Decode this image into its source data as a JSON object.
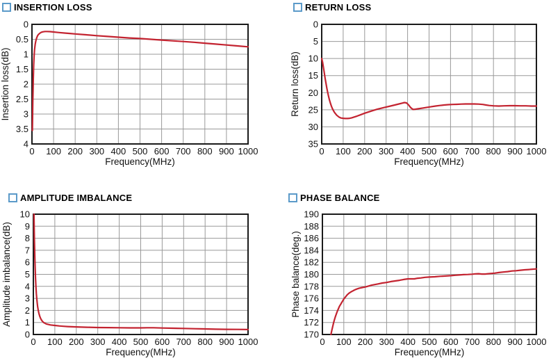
{
  "colors": {
    "curve": "#c32330",
    "grid": "#999999",
    "axis": "#1a1a1a",
    "text": "#111111",
    "title_square": "#5b9ac9",
    "title_text": "#000000",
    "background": "#ffffff"
  },
  "chart_data": [
    {
      "type": "line",
      "title": "INSERTION LOSS",
      "xlabel": "Frequency(MHz)",
      "ylabel": "Insertion loss(dB)",
      "xlim": [
        0,
        1000
      ],
      "xticks": [
        0,
        100,
        200,
        300,
        400,
        500,
        600,
        700,
        800,
        900,
        1000
      ],
      "ylim": [
        0,
        4
      ],
      "yticks": [
        0,
        0.5,
        1,
        1.5,
        2,
        2.5,
        3,
        3.5,
        4
      ],
      "y_inverted": true,
      "grid": true,
      "legend": "none",
      "series": [
        {
          "name": "insertion-loss",
          "points": [
            [
              2,
              3.55
            ],
            [
              3,
              3.1
            ],
            [
              4,
              2.6
            ],
            [
              5,
              2.2
            ],
            [
              6,
              1.85
            ],
            [
              8,
              1.35
            ],
            [
              10,
              1.05
            ],
            [
              12,
              0.85
            ],
            [
              15,
              0.66
            ],
            [
              18,
              0.55
            ],
            [
              22,
              0.45
            ],
            [
              26,
              0.38
            ],
            [
              30,
              0.34
            ],
            [
              36,
              0.3
            ],
            [
              42,
              0.27
            ],
            [
              50,
              0.25
            ],
            [
              60,
              0.24
            ],
            [
              70,
              0.24
            ],
            [
              85,
              0.245
            ],
            [
              100,
              0.255
            ],
            [
              125,
              0.275
            ],
            [
              150,
              0.29
            ],
            [
              175,
              0.305
            ],
            [
              200,
              0.32
            ],
            [
              250,
              0.35
            ],
            [
              300,
              0.38
            ],
            [
              350,
              0.405
            ],
            [
              400,
              0.43
            ],
            [
              450,
              0.455
            ],
            [
              500,
              0.475
            ],
            [
              550,
              0.5
            ],
            [
              600,
              0.525
            ],
            [
              650,
              0.55
            ],
            [
              700,
              0.575
            ],
            [
              750,
              0.6
            ],
            [
              800,
              0.63
            ],
            [
              850,
              0.66
            ],
            [
              900,
              0.69
            ],
            [
              950,
              0.72
            ],
            [
              1000,
              0.75
            ]
          ]
        }
      ]
    },
    {
      "type": "line",
      "title": "RETURN LOSS",
      "xlabel": "Frequency(MHz)",
      "ylabel": "Return loss(dB)",
      "xlim": [
        0,
        1000
      ],
      "xticks": [
        0,
        100,
        200,
        300,
        400,
        500,
        600,
        700,
        800,
        900,
        1000
      ],
      "ylim": [
        0,
        35
      ],
      "yticks": [
        0,
        5,
        10,
        15,
        20,
        25,
        30,
        35
      ],
      "y_inverted": true,
      "grid": true,
      "legend": "none",
      "series": [
        {
          "name": "return-loss",
          "points": [
            [
              0,
              10
            ],
            [
              4,
              11
            ],
            [
              8,
              12.6
            ],
            [
              12,
              14.2
            ],
            [
              16,
              15.8
            ],
            [
              20,
              17.3
            ],
            [
              24,
              18.7
            ],
            [
              28,
              20
            ],
            [
              32,
              21.1
            ],
            [
              36,
              22.1
            ],
            [
              40,
              23
            ],
            [
              45,
              23.9
            ],
            [
              50,
              24.7
            ],
            [
              55,
              25.3
            ],
            [
              60,
              25.8
            ],
            [
              70,
              26.6
            ],
            [
              80,
              27.1
            ],
            [
              90,
              27.4
            ],
            [
              100,
              27.5
            ],
            [
              110,
              27.55
            ],
            [
              120,
              27.55
            ],
            [
              130,
              27.5
            ],
            [
              140,
              27.35
            ],
            [
              150,
              27.15
            ],
            [
              165,
              26.85
            ],
            [
              180,
              26.5
            ],
            [
              200,
              26
            ],
            [
              220,
              25.6
            ],
            [
              240,
              25.2
            ],
            [
              260,
              24.8
            ],
            [
              280,
              24.5
            ],
            [
              300,
              24.2
            ],
            [
              320,
              23.9
            ],
            [
              340,
              23.6
            ],
            [
              360,
              23.3
            ],
            [
              375,
              23.05
            ],
            [
              385,
              22.9
            ],
            [
              395,
              23
            ],
            [
              405,
              23.6
            ],
            [
              415,
              24.4
            ],
            [
              425,
              24.9
            ],
            [
              435,
              24.85
            ],
            [
              450,
              24.7
            ],
            [
              470,
              24.5
            ],
            [
              490,
              24.3
            ],
            [
              510,
              24.1
            ],
            [
              530,
              23.9
            ],
            [
              550,
              23.75
            ],
            [
              570,
              23.6
            ],
            [
              590,
              23.5
            ],
            [
              610,
              23.45
            ],
            [
              630,
              23.4
            ],
            [
              650,
              23.35
            ],
            [
              670,
              23.3
            ],
            [
              690,
              23.3
            ],
            [
              710,
              23.3
            ],
            [
              730,
              23.35
            ],
            [
              750,
              23.45
            ],
            [
              765,
              23.6
            ],
            [
              780,
              23.75
            ],
            [
              800,
              23.85
            ],
            [
              825,
              23.9
            ],
            [
              850,
              23.85
            ],
            [
              875,
              23.8
            ],
            [
              900,
              23.8
            ],
            [
              925,
              23.85
            ],
            [
              950,
              23.85
            ],
            [
              975,
              23.9
            ],
            [
              1000,
              23.9
            ]
          ]
        }
      ]
    },
    {
      "type": "line",
      "title": "AMPLITUDE IMBALANCE",
      "xlabel": "Frequency(MHz)",
      "ylabel": "Amplitude imbalance(dB)",
      "xlim": [
        0,
        1000
      ],
      "xticks": [
        0,
        100,
        200,
        300,
        400,
        500,
        600,
        700,
        800,
        900,
        1000
      ],
      "ylim": [
        0,
        10
      ],
      "yticks": [
        0,
        1,
        2,
        3,
        4,
        5,
        6,
        7,
        8,
        9,
        10
      ],
      "y_inverted": false,
      "grid": true,
      "legend": "none",
      "series": [
        {
          "name": "amplitude-imbalance",
          "points": [
            [
              3,
              10
            ],
            [
              4,
              8.9
            ],
            [
              5,
              7.9
            ],
            [
              6,
              7
            ],
            [
              7,
              6.3
            ],
            [
              8,
              5.7
            ],
            [
              10,
              4.7
            ],
            [
              12,
              4
            ],
            [
              14,
              3.4
            ],
            [
              16,
              3
            ],
            [
              18,
              2.6
            ],
            [
              20,
              2.3
            ],
            [
              23,
              2
            ],
            [
              26,
              1.75
            ],
            [
              30,
              1.5
            ],
            [
              34,
              1.33
            ],
            [
              38,
              1.2
            ],
            [
              42,
              1.1
            ],
            [
              46,
              1.03
            ],
            [
              50,
              0.97
            ],
            [
              60,
              0.88
            ],
            [
              70,
              0.83
            ],
            [
              80,
              0.79
            ],
            [
              100,
              0.75
            ],
            [
              120,
              0.71
            ],
            [
              140,
              0.68
            ],
            [
              160,
              0.66
            ],
            [
              180,
              0.64
            ],
            [
              200,
              0.63
            ],
            [
              250,
              0.6
            ],
            [
              300,
              0.58
            ],
            [
              350,
              0.57
            ],
            [
              400,
              0.56
            ],
            [
              450,
              0.55
            ],
            [
              500,
              0.55
            ],
            [
              530,
              0.56
            ],
            [
              560,
              0.56
            ],
            [
              600,
              0.54
            ],
            [
              650,
              0.52
            ],
            [
              700,
              0.5
            ],
            [
              750,
              0.48
            ],
            [
              800,
              0.46
            ],
            [
              850,
              0.44
            ],
            [
              900,
              0.43
            ],
            [
              950,
              0.42
            ],
            [
              1000,
              0.41
            ]
          ]
        }
      ]
    },
    {
      "type": "line",
      "title": "PHASE BALANCE",
      "xlabel": "Frequency(MHz)",
      "ylabel": "Phase balance(deg.)",
      "xlim": [
        0,
        1000
      ],
      "xticks": [
        0,
        100,
        200,
        300,
        400,
        500,
        600,
        700,
        800,
        900,
        1000
      ],
      "ylim": [
        170,
        190
      ],
      "yticks": [
        170,
        172,
        174,
        176,
        178,
        180,
        182,
        184,
        186,
        188,
        190
      ],
      "y_inverted": false,
      "grid": true,
      "legend": "none",
      "series": [
        {
          "name": "phase-balance",
          "points": [
            [
              40,
              170
            ],
            [
              44,
              170.7
            ],
            [
              48,
              171.3
            ],
            [
              52,
              171.9
            ],
            [
              56,
              172.4
            ],
            [
              60,
              172.9
            ],
            [
              65,
              173.4
            ],
            [
              70,
              173.9
            ],
            [
              75,
              174.3
            ],
            [
              80,
              174.7
            ],
            [
              85,
              175
            ],
            [
              90,
              175.3
            ],
            [
              95,
              175.6
            ],
            [
              100,
              175.9
            ],
            [
              108,
              176.25
            ],
            [
              116,
              176.6
            ],
            [
              124,
              176.85
            ],
            [
              132,
              177.05
            ],
            [
              140,
              177.2
            ],
            [
              150,
              177.4
            ],
            [
              160,
              177.55
            ],
            [
              172,
              177.7
            ],
            [
              186,
              177.8
            ],
            [
              200,
              177.9
            ],
            [
              215,
              178.05
            ],
            [
              230,
              178.2
            ],
            [
              245,
              178.3
            ],
            [
              260,
              178.4
            ],
            [
              280,
              178.55
            ],
            [
              300,
              178.65
            ],
            [
              320,
              178.8
            ],
            [
              340,
              178.9
            ],
            [
              360,
              179
            ],
            [
              380,
              179.15
            ],
            [
              400,
              179.25
            ],
            [
              415,
              179.25
            ],
            [
              430,
              179.25
            ],
            [
              445,
              179.35
            ],
            [
              460,
              179.4
            ],
            [
              480,
              179.5
            ],
            [
              500,
              179.55
            ],
            [
              525,
              179.6
            ],
            [
              550,
              179.68
            ],
            [
              575,
              179.72
            ],
            [
              600,
              179.78
            ],
            [
              620,
              179.85
            ],
            [
              640,
              179.9
            ],
            [
              660,
              179.95
            ],
            [
              680,
              179.98
            ],
            [
              700,
              180.02
            ],
            [
              715,
              180.08
            ],
            [
              730,
              180.1
            ],
            [
              745,
              180.05
            ],
            [
              760,
              180.05
            ],
            [
              775,
              180.1
            ],
            [
              790,
              180.15
            ],
            [
              805,
              180.2
            ],
            [
              825,
              180.3
            ],
            [
              845,
              180.38
            ],
            [
              865,
              180.45
            ],
            [
              885,
              180.55
            ],
            [
              905,
              180.6
            ],
            [
              925,
              180.68
            ],
            [
              945,
              180.75
            ],
            [
              965,
              180.8
            ],
            [
              1000,
              180.9
            ]
          ]
        }
      ]
    }
  ]
}
